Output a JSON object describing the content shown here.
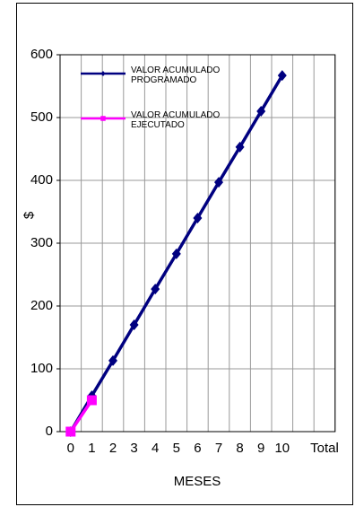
{
  "chart_data": {
    "type": "line",
    "categories": [
      "0",
      "1",
      "2",
      "3",
      "4",
      "5",
      "6",
      "7",
      "8",
      "9",
      "10",
      null,
      "Total"
    ],
    "series": [
      {
        "name": "VALOR ACUMULADO PROGRAMADO",
        "color": "#000080",
        "marker": "diamond",
        "values": [
          0,
          57,
          113,
          170,
          227,
          283,
          340,
          397,
          453,
          510,
          567,
          null,
          null
        ]
      },
      {
        "name": "VALOR ACUMULADO EJECUTADO",
        "color": "#ff00ff",
        "marker": "square",
        "values": [
          0,
          50,
          null,
          null,
          null,
          null,
          null,
          null,
          null,
          null,
          null,
          null,
          null
        ]
      }
    ],
    "xlabel": "MESES",
    "ylabel": "$",
    "ylim": [
      0,
      600
    ],
    "yticks": [
      0,
      100,
      200,
      300,
      400,
      500,
      600
    ],
    "grid": true,
    "legend": "top-left"
  }
}
